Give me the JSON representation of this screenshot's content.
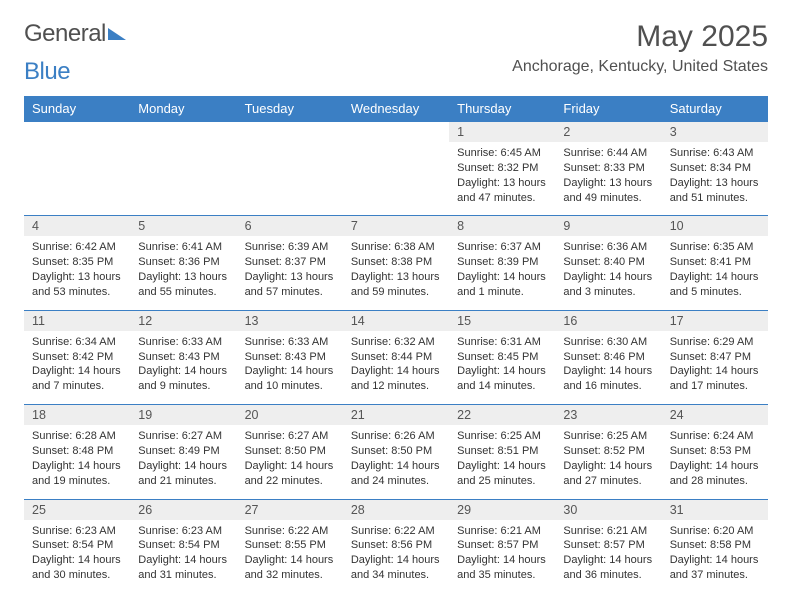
{
  "brand": {
    "part1": "General",
    "part2": "Blue"
  },
  "header": {
    "month_title": "May 2025",
    "location": "Anchorage, Kentucky, United States"
  },
  "colors": {
    "header_bg": "#3b7fc4",
    "header_fg": "#ffffff",
    "daynum_bg": "#eeeeee",
    "border": "#3b7fc4",
    "text": "#333333"
  },
  "daynames": [
    "Sunday",
    "Monday",
    "Tuesday",
    "Wednesday",
    "Thursday",
    "Friday",
    "Saturday"
  ],
  "weeks": [
    [
      null,
      null,
      null,
      null,
      {
        "n": "1",
        "sunrise": "6:45 AM",
        "sunset": "8:32 PM",
        "day_l1": "Daylight: 13 hours",
        "day_l2": "and 47 minutes."
      },
      {
        "n": "2",
        "sunrise": "6:44 AM",
        "sunset": "8:33 PM",
        "day_l1": "Daylight: 13 hours",
        "day_l2": "and 49 minutes."
      },
      {
        "n": "3",
        "sunrise": "6:43 AM",
        "sunset": "8:34 PM",
        "day_l1": "Daylight: 13 hours",
        "day_l2": "and 51 minutes."
      }
    ],
    [
      {
        "n": "4",
        "sunrise": "6:42 AM",
        "sunset": "8:35 PM",
        "day_l1": "Daylight: 13 hours",
        "day_l2": "and 53 minutes."
      },
      {
        "n": "5",
        "sunrise": "6:41 AM",
        "sunset": "8:36 PM",
        "day_l1": "Daylight: 13 hours",
        "day_l2": "and 55 minutes."
      },
      {
        "n": "6",
        "sunrise": "6:39 AM",
        "sunset": "8:37 PM",
        "day_l1": "Daylight: 13 hours",
        "day_l2": "and 57 minutes."
      },
      {
        "n": "7",
        "sunrise": "6:38 AM",
        "sunset": "8:38 PM",
        "day_l1": "Daylight: 13 hours",
        "day_l2": "and 59 minutes."
      },
      {
        "n": "8",
        "sunrise": "6:37 AM",
        "sunset": "8:39 PM",
        "day_l1": "Daylight: 14 hours",
        "day_l2": "and 1 minute."
      },
      {
        "n": "9",
        "sunrise": "6:36 AM",
        "sunset": "8:40 PM",
        "day_l1": "Daylight: 14 hours",
        "day_l2": "and 3 minutes."
      },
      {
        "n": "10",
        "sunrise": "6:35 AM",
        "sunset": "8:41 PM",
        "day_l1": "Daylight: 14 hours",
        "day_l2": "and 5 minutes."
      }
    ],
    [
      {
        "n": "11",
        "sunrise": "6:34 AM",
        "sunset": "8:42 PM",
        "day_l1": "Daylight: 14 hours",
        "day_l2": "and 7 minutes."
      },
      {
        "n": "12",
        "sunrise": "6:33 AM",
        "sunset": "8:43 PM",
        "day_l1": "Daylight: 14 hours",
        "day_l2": "and 9 minutes."
      },
      {
        "n": "13",
        "sunrise": "6:33 AM",
        "sunset": "8:43 PM",
        "day_l1": "Daylight: 14 hours",
        "day_l2": "and 10 minutes."
      },
      {
        "n": "14",
        "sunrise": "6:32 AM",
        "sunset": "8:44 PM",
        "day_l1": "Daylight: 14 hours",
        "day_l2": "and 12 minutes."
      },
      {
        "n": "15",
        "sunrise": "6:31 AM",
        "sunset": "8:45 PM",
        "day_l1": "Daylight: 14 hours",
        "day_l2": "and 14 minutes."
      },
      {
        "n": "16",
        "sunrise": "6:30 AM",
        "sunset": "8:46 PM",
        "day_l1": "Daylight: 14 hours",
        "day_l2": "and 16 minutes."
      },
      {
        "n": "17",
        "sunrise": "6:29 AM",
        "sunset": "8:47 PM",
        "day_l1": "Daylight: 14 hours",
        "day_l2": "and 17 minutes."
      }
    ],
    [
      {
        "n": "18",
        "sunrise": "6:28 AM",
        "sunset": "8:48 PM",
        "day_l1": "Daylight: 14 hours",
        "day_l2": "and 19 minutes."
      },
      {
        "n": "19",
        "sunrise": "6:27 AM",
        "sunset": "8:49 PM",
        "day_l1": "Daylight: 14 hours",
        "day_l2": "and 21 minutes."
      },
      {
        "n": "20",
        "sunrise": "6:27 AM",
        "sunset": "8:50 PM",
        "day_l1": "Daylight: 14 hours",
        "day_l2": "and 22 minutes."
      },
      {
        "n": "21",
        "sunrise": "6:26 AM",
        "sunset": "8:50 PM",
        "day_l1": "Daylight: 14 hours",
        "day_l2": "and 24 minutes."
      },
      {
        "n": "22",
        "sunrise": "6:25 AM",
        "sunset": "8:51 PM",
        "day_l1": "Daylight: 14 hours",
        "day_l2": "and 25 minutes."
      },
      {
        "n": "23",
        "sunrise": "6:25 AM",
        "sunset": "8:52 PM",
        "day_l1": "Daylight: 14 hours",
        "day_l2": "and 27 minutes."
      },
      {
        "n": "24",
        "sunrise": "6:24 AM",
        "sunset": "8:53 PM",
        "day_l1": "Daylight: 14 hours",
        "day_l2": "and 28 minutes."
      }
    ],
    [
      {
        "n": "25",
        "sunrise": "6:23 AM",
        "sunset": "8:54 PM",
        "day_l1": "Daylight: 14 hours",
        "day_l2": "and 30 minutes."
      },
      {
        "n": "26",
        "sunrise": "6:23 AM",
        "sunset": "8:54 PM",
        "day_l1": "Daylight: 14 hours",
        "day_l2": "and 31 minutes."
      },
      {
        "n": "27",
        "sunrise": "6:22 AM",
        "sunset": "8:55 PM",
        "day_l1": "Daylight: 14 hours",
        "day_l2": "and 32 minutes."
      },
      {
        "n": "28",
        "sunrise": "6:22 AM",
        "sunset": "8:56 PM",
        "day_l1": "Daylight: 14 hours",
        "day_l2": "and 34 minutes."
      },
      {
        "n": "29",
        "sunrise": "6:21 AM",
        "sunset": "8:57 PM",
        "day_l1": "Daylight: 14 hours",
        "day_l2": "and 35 minutes."
      },
      {
        "n": "30",
        "sunrise": "6:21 AM",
        "sunset": "8:57 PM",
        "day_l1": "Daylight: 14 hours",
        "day_l2": "and 36 minutes."
      },
      {
        "n": "31",
        "sunrise": "6:20 AM",
        "sunset": "8:58 PM",
        "day_l1": "Daylight: 14 hours",
        "day_l2": "and 37 minutes."
      }
    ]
  ],
  "labels": {
    "sunrise_prefix": "Sunrise: ",
    "sunset_prefix": "Sunset: "
  }
}
